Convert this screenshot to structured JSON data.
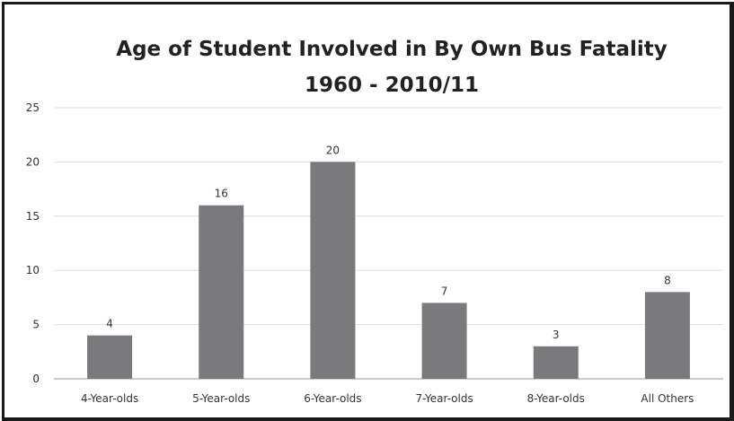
{
  "chart_data": {
    "type": "bar",
    "title": "Age of Student Involved in By Own Bus Fatality",
    "subtitle": "1960 - 2010/11",
    "categories": [
      "4-Year-olds",
      "5-Year-olds",
      "6-Year-olds",
      "7-Year-olds",
      "8-Year-olds",
      "All Others"
    ],
    "values": [
      4,
      16,
      20,
      7,
      3,
      8
    ],
    "data_labels": [
      "4",
      "16",
      "20",
      "7",
      "3",
      "8"
    ],
    "ylim": [
      0,
      25
    ],
    "yticks": [
      "0",
      "5",
      "10",
      "15",
      "20",
      "25"
    ],
    "grid": true,
    "legend": "none",
    "colors": {
      "bar": "#7a7a7c",
      "grid": "#dddddd",
      "frame": "#1a1a1a"
    }
  }
}
